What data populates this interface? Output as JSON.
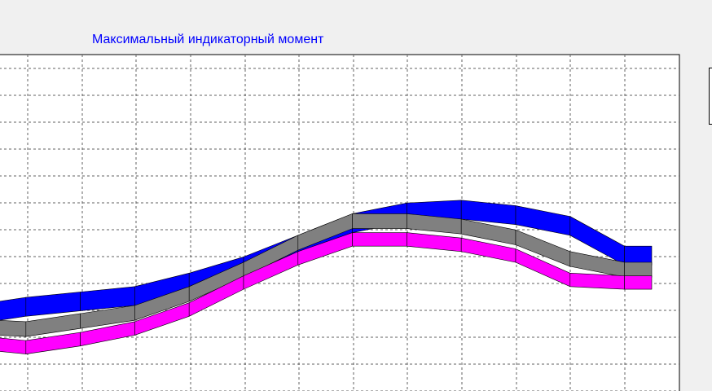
{
  "chart_data": {
    "type": "area",
    "title": "Максимальный индикаторный момент",
    "grid": true,
    "xlim": [
      0.0,
      12.5
    ],
    "ylim": [
      0.0,
      12.5
    ],
    "x": [
      0,
      1,
      2,
      3,
      4,
      5,
      6,
      7,
      8,
      9,
      10,
      11,
      12,
      12.5
    ],
    "series": [
      {
        "color": "#0000ff",
        "values": [
          3.2,
          3.5,
          3.7,
          3.9,
          4.4,
          5.0,
          5.8,
          6.6,
          7.0,
          7.1,
          6.9,
          6.5,
          5.4,
          5.4
        ],
        "depth": 0.7
      },
      {
        "color": "#808080",
        "values": [
          2.7,
          2.6,
          2.9,
          3.2,
          3.9,
          4.8,
          5.8,
          6.6,
          6.6,
          6.4,
          6.0,
          5.2,
          4.8,
          4.8
        ],
        "depth": 0.55
      },
      {
        "color": "#ff00ff",
        "values": [
          2.1,
          1.9,
          2.2,
          2.6,
          3.3,
          4.3,
          5.2,
          5.9,
          5.9,
          5.7,
          5.3,
          4.4,
          4.3,
          4.3
        ],
        "depth": 0.5
      }
    ]
  }
}
